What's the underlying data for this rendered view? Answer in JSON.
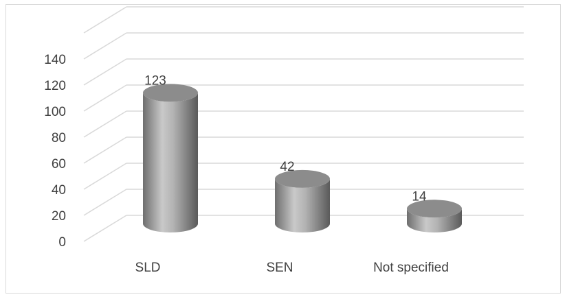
{
  "chart_data": {
    "type": "bar",
    "style": "3d-cylinder",
    "categories": [
      "SLD",
      "SEN",
      "Not specified"
    ],
    "values": [
      123,
      42,
      14
    ],
    "ylim": [
      0,
      140
    ],
    "yticks": [
      0,
      20,
      40,
      60,
      80,
      100,
      120,
      140
    ],
    "title": "",
    "xlabel": "",
    "ylabel": "",
    "grid": true,
    "legend": "none",
    "colors": {
      "bar_dark": "#6e6e6e",
      "bar_mid": "#a6a6a6",
      "bar_light": "#c9c9c9",
      "bar_top": "#8c8c8c",
      "grid": "#d9d9d9",
      "text": "#404040"
    }
  }
}
